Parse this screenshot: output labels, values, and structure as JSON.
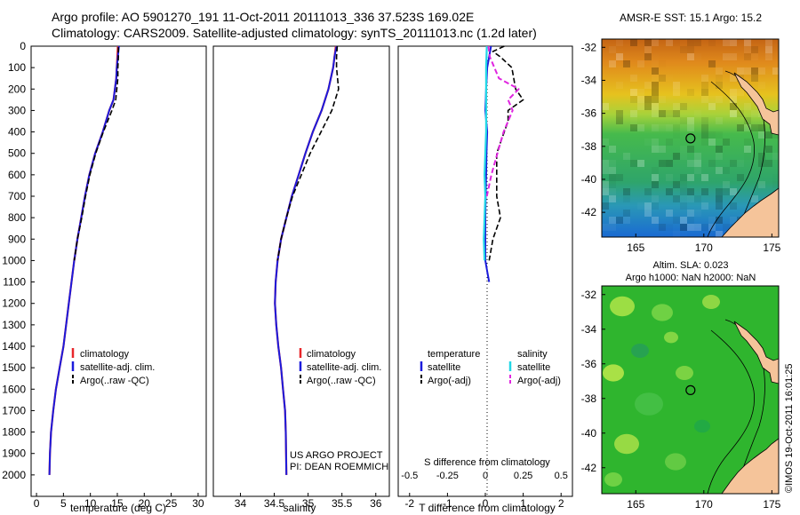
{
  "header": {
    "line1": "Argo profile: AO 5901270_191 11-Oct-2011 20111013_336 37.523S 169.02E",
    "line2": "Climatology: CARS2009. Satellite-adjusted climatology: synTS_20111013.nc (1.2d later)"
  },
  "colors": {
    "climatology": "#e8262a",
    "satellite": "#1b1bdc",
    "argo": "#000000",
    "satellite_s": "#22d7e6",
    "argo_s": "#e026e0"
  },
  "chart_data": [
    {
      "type": "line",
      "xlabel": "temperature (deg C)",
      "ylabel": "",
      "xlim": [
        -1,
        31.5
      ],
      "ylim": [
        0,
        2100
      ],
      "y_reversed": true,
      "xticks": [
        0,
        5,
        10,
        15,
        20,
        25,
        30
      ],
      "yticks": [
        0,
        100,
        200,
        300,
        400,
        500,
        600,
        700,
        800,
        900,
        1000,
        1100,
        1200,
        1300,
        1400,
        1500,
        1600,
        1700,
        1800,
        1900,
        2000
      ],
      "legend": [
        "climatology",
        "satellite-adj. clim.",
        "Argo(..raw -QC)"
      ],
      "legend_position": "lower-right",
      "series": [
        {
          "name": "climatology",
          "x": [
            15.1,
            15.0,
            14.9,
            14.8,
            14.3,
            13.5,
            12.3,
            10.9,
            9.8,
            9.0,
            8.3,
            7.6,
            7.0,
            6.0,
            5.0,
            4.3,
            3.6,
            3.1,
            2.7,
            2.5,
            2.4
          ],
          "y": [
            0,
            50,
            100,
            150,
            250,
            300,
            400,
            500,
            600,
            700,
            800,
            900,
            1000,
            1200,
            1400,
            1500,
            1600,
            1700,
            1800,
            1900,
            2000
          ]
        },
        {
          "name": "satellite-adj. clim.",
          "x": [
            15.3,
            15.1,
            14.9,
            14.8,
            14.3,
            13.5,
            12.3,
            10.9,
            9.8,
            9.0,
            8.3,
            7.6,
            7.0,
            6.0,
            5.0,
            4.3,
            3.6,
            3.1,
            2.7,
            2.5,
            2.4
          ],
          "y": [
            0,
            50,
            100,
            150,
            250,
            300,
            400,
            500,
            600,
            700,
            800,
            900,
            1000,
            1200,
            1400,
            1500,
            1600,
            1700,
            1800,
            1900,
            2000
          ]
        },
        {
          "name": "Argo(..raw -QC)",
          "x": [
            15.2,
            15.2,
            15.1,
            15.1,
            14.7,
            14.0,
            12.4,
            11.0,
            9.9,
            9.1,
            8.4,
            7.6,
            7.0
          ],
          "y": [
            5,
            50,
            100,
            150,
            250,
            300,
            400,
            500,
            600,
            700,
            800,
            900,
            1000
          ]
        }
      ]
    },
    {
      "type": "line",
      "xlabel": "salinity",
      "ylabel": "",
      "xlim": [
        33.6,
        36.2
      ],
      "ylim": [
        0,
        2100
      ],
      "y_reversed": true,
      "xticks": [
        34,
        34.5,
        35,
        35.5,
        36
      ],
      "xtick_labels": [
        "34",
        "34.5",
        "35",
        "35.5",
        "36"
      ],
      "legend": [
        "climatology",
        "satellite-adj. clim.",
        "Argo(..raw -QC)"
      ],
      "legend_position": "lower-right",
      "annotations": [
        "US ARGO PROJECT",
        "PI: DEAN ROEMMICH"
      ],
      "series": [
        {
          "name": "climatology",
          "x": [
            35.41,
            35.39,
            35.37,
            35.3,
            35.2,
            35.07,
            34.96,
            34.86,
            34.76,
            34.68,
            34.6,
            34.55,
            34.52,
            34.51,
            34.53,
            34.56,
            34.6,
            34.63,
            34.66,
            34.67,
            34.68
          ],
          "y": [
            0,
            50,
            100,
            200,
            300,
            400,
            500,
            600,
            700,
            800,
            900,
            1000,
            1100,
            1200,
            1300,
            1400,
            1500,
            1600,
            1700,
            1800,
            2000
          ]
        },
        {
          "name": "satellite-adj. clim.",
          "x": [
            35.42,
            35.39,
            35.37,
            35.3,
            35.2,
            35.07,
            34.96,
            34.86,
            34.76,
            34.68,
            34.6,
            34.55,
            34.52,
            34.51,
            34.53,
            34.56,
            34.6,
            34.63,
            34.66,
            34.67,
            34.68
          ],
          "y": [
            0,
            50,
            100,
            200,
            300,
            400,
            500,
            600,
            700,
            800,
            900,
            1000,
            1100,
            1200,
            1300,
            1400,
            1500,
            1600,
            1700,
            1800,
            2000
          ]
        },
        {
          "name": "Argo(..raw -QC)",
          "x": [
            35.43,
            35.42,
            35.42,
            35.45,
            35.35,
            35.19,
            35.03,
            34.9,
            34.77,
            34.68,
            34.6,
            34.55
          ],
          "y": [
            0,
            50,
            100,
            200,
            300,
            400,
            500,
            600,
            700,
            800,
            900,
            1000
          ]
        }
      ]
    },
    {
      "type": "line",
      "xlabel": "T difference from climatology",
      "xlabel_top": "S difference from climatology",
      "ylabel": "",
      "xlim": [
        -2.3,
        2.3
      ],
      "ylim": [
        0,
        2100
      ],
      "y_reversed": true,
      "xticks": [
        -2,
        -1,
        0,
        1,
        2
      ],
      "s_xticks": [
        -0.5,
        -0.25,
        0,
        0.25,
        0.5
      ],
      "s_scale": 4,
      "legend_groups": [
        {
          "title": "temperature",
          "items": [
            "satellite",
            "Argo(-adj)"
          ]
        },
        {
          "title": "salinity",
          "items": [
            "satellite",
            "Argo(-adj)"
          ]
        }
      ],
      "legend_position": "lower-center",
      "series": [
        {
          "name": "temperature satellite",
          "x": [
            0.15,
            0.1,
            0.05,
            0.02,
            0.0,
            0.05,
            0.03,
            0.02,
            0.01,
            0.0,
            0.0,
            0.0,
            0.0,
            0.05,
            0.1
          ],
          "y": [
            0,
            50,
            100,
            200,
            300,
            400,
            500,
            600,
            700,
            800,
            900,
            950,
            1000,
            1050,
            1100
          ]
        },
        {
          "name": "temperature Argo(-adj)",
          "x": [
            0.5,
            0.2,
            0.4,
            0.7,
            0.8,
            1.0,
            0.6,
            0.6,
            0.5,
            0.4,
            0.3,
            0.3,
            0.4,
            0.2,
            0.1
          ],
          "y": [
            0,
            25,
            50,
            100,
            200,
            250,
            300,
            350,
            400,
            450,
            500,
            700,
            800,
            900,
            1000
          ]
        },
        {
          "name": "salinity satellite",
          "x": [
            0.01,
            0.005,
            0.005,
            0.005,
            0.005,
            0.0,
            -0.005,
            0.0,
            -0.005,
            -0.01,
            -0.005
          ],
          "y": [
            0,
            100,
            200,
            300,
            400,
            500,
            600,
            700,
            800,
            900,
            1000
          ]
        },
        {
          "name": "salinity Argo(-adj)",
          "x": [
            0.02,
            0.03,
            0.09,
            0.22,
            0.15,
            0.18,
            0.12,
            0.08,
            0.04,
            0.01
          ],
          "y": [
            0,
            50,
            150,
            200,
            250,
            300,
            400,
            500,
            600,
            700
          ]
        }
      ]
    },
    {
      "type": "heatmap",
      "title": "AMSR-E SST: 15.1  Argo: 15.2",
      "xlim": [
        162.5,
        175.5
      ],
      "ylim": [
        -43.5,
        -31.5
      ],
      "xticks": [
        165,
        170,
        175
      ],
      "yticks": [
        -32,
        -34,
        -36,
        -38,
        -40,
        -42
      ],
      "marker": {
        "lon": 169.02,
        "lat": -37.52
      }
    },
    {
      "type": "heatmap",
      "title": "Altim. SLA: 0.023",
      "subtitle": "Argo h1000: NaN h2000: NaN",
      "xlim": [
        162.5,
        175.5
      ],
      "ylim": [
        -43.5,
        -31.5
      ],
      "xticks": [
        165,
        170,
        175
      ],
      "yticks": [
        -32,
        -34,
        -36,
        -38,
        -40,
        -42
      ],
      "marker": {
        "lon": 169.02,
        "lat": -37.52
      },
      "annotation": "©IMOS 19-Oct-2011 16:01:25"
    }
  ]
}
